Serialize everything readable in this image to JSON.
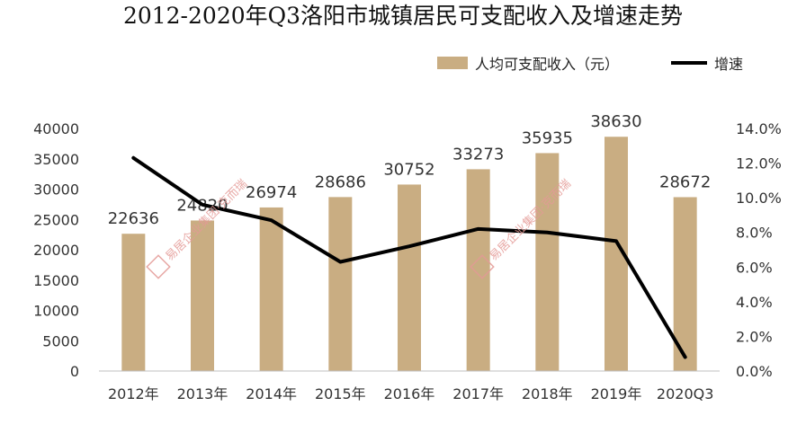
{
  "chart_data": {
    "type": "bar",
    "title": "2012-2020年Q3洛阳市城镇居民可支配收入及增速走势",
    "categories": [
      "2012年",
      "2013年",
      "2014年",
      "2015年",
      "2016年",
      "2017年",
      "2018年",
      "2019年",
      "2020Q3"
    ],
    "series": [
      {
        "name": "人均可支配收入（元）",
        "type": "bar",
        "axis": "left",
        "values": [
          22636,
          24820,
          26974,
          28686,
          30752,
          33273,
          35935,
          38630,
          28672
        ],
        "color": "#c9ad82"
      },
      {
        "name": "增速",
        "type": "line",
        "axis": "right",
        "values": [
          12.3,
          9.6,
          8.7,
          6.3,
          7.2,
          8.2,
          8.0,
          7.5,
          0.8
        ],
        "color": "#000000"
      }
    ],
    "ylim": [
      0,
      40000
    ],
    "yticks": [
      "0",
      "5000",
      "10000",
      "15000",
      "20000",
      "25000",
      "30000",
      "35000",
      "40000"
    ],
    "y2lim": [
      0,
      14
    ],
    "y2ticks": [
      "0.0%",
      "2.0%",
      "4.0%",
      "6.0%",
      "8.0%",
      "10.0%",
      "12.0%",
      "14.0%"
    ],
    "grid": false,
    "legend_position": "top-right"
  },
  "watermark": "易居企业集团·克而瑞"
}
